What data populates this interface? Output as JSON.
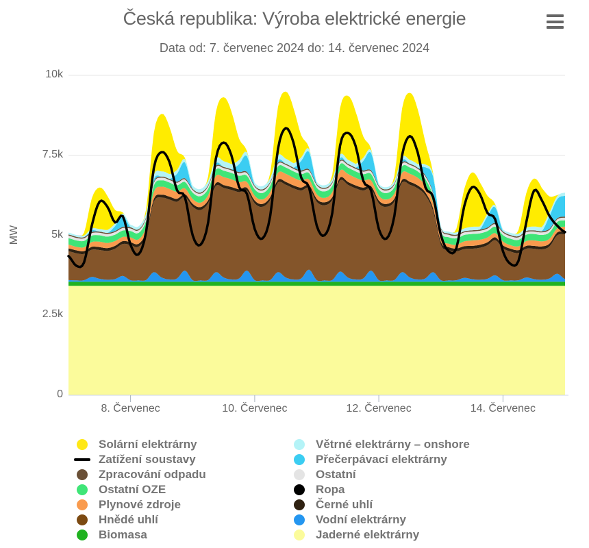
{
  "header": {
    "title": "Česká republika: Výroba elektrické energie",
    "subtitle": "Data od: 7. červenec 2024 do: 14. červenec 2024",
    "menu_icon": "menu-icon"
  },
  "chart_data": {
    "type": "area-stacked",
    "title": "Česká republika: Výroba elektrické energie",
    "ylabel": "MW",
    "ylim": [
      0,
      10000
    ],
    "grid": "horizontal",
    "legend_position": "bottom-two-columns",
    "x_start": "7. červenec 2024 00:00",
    "x_end": "15. červenec 2024 00:00",
    "step_hours": 3,
    "n_points": 65,
    "total_hours": 192,
    "yticks": [
      {
        "value": 0,
        "label": "0"
      },
      {
        "value": 2500,
        "label": "2.5k"
      },
      {
        "value": 5000,
        "label": "5k"
      },
      {
        "value": 7500,
        "label": "7.5k"
      },
      {
        "value": 10000,
        "label": "10k"
      }
    ],
    "xticks": [
      {
        "hours": 24,
        "label": "8. Červenec"
      },
      {
        "hours": 72,
        "label": "10. Červenec"
      },
      {
        "hours": 120,
        "label": "12. Červenec"
      },
      {
        "hours": 168,
        "label": "14. Červenec"
      }
    ],
    "axis_colors": {
      "grid": "#E6E6E6",
      "axis_line": "#CCD6EB",
      "tick": "#A8B2BE",
      "label": "#666666"
    },
    "stack_order": [
      "jaderne",
      "biomasa",
      "vodni",
      "hnede",
      "cerne",
      "ropa",
      "plyn",
      "oze",
      "ostatni",
      "zprac",
      "precerp",
      "vitr",
      "solar"
    ],
    "series": {
      "jaderne": {
        "name": "Jaderné elektrárny",
        "color": "#FBFB9B",
        "constant": 3420
      },
      "biomasa": {
        "name": "Biomasa",
        "color": "#20B220",
        "constant": 130
      },
      "vodni": {
        "name": "Vodní elektrárny",
        "color": "#2496F0",
        "values": [
          50,
          40,
          45,
          150,
          90,
          60,
          80,
          180,
          45,
          40,
          50,
          300,
          130,
          70,
          100,
          350,
          45,
          40,
          50,
          300,
          130,
          70,
          100,
          350,
          45,
          40,
          50,
          300,
          130,
          70,
          100,
          380,
          45,
          40,
          50,
          320,
          130,
          70,
          100,
          350,
          45,
          40,
          50,
          300,
          130,
          70,
          100,
          300,
          45,
          40,
          45,
          120,
          80,
          60,
          90,
          200,
          45,
          40,
          45,
          130,
          80,
          60,
          100,
          250,
          80
        ]
      },
      "hnede": {
        "name": "Hnědé uhlí",
        "color": "#84552A",
        "values": [
          900,
          850,
          820,
          850,
          900,
          900,
          950,
          1000,
          1100,
          1050,
          1400,
          2200,
          2500,
          2500,
          2400,
          2300,
          2300,
          2200,
          2400,
          2700,
          2800,
          2800,
          2700,
          2500,
          2400,
          2300,
          2500,
          2800,
          2900,
          2850,
          2750,
          2550,
          2450,
          2350,
          2500,
          2850,
          2900,
          2850,
          2750,
          2550,
          2400,
          2300,
          2450,
          2800,
          2900,
          2850,
          2600,
          1900,
          1100,
          950,
          900,
          900,
          950,
          1000,
          1050,
          1100,
          1000,
          900,
          850,
          900,
          950,
          950,
          1000,
          1200,
          1400
        ]
      },
      "cerne": {
        "name": "Černé uhlí",
        "color": "#2F2212",
        "constant": 90
      },
      "ropa": {
        "name": "Ropa",
        "color": "#000000",
        "constant": 0
      },
      "plyn": {
        "name": "Plynové zdroje",
        "color": "#F99B4E",
        "values": [
          120,
          110,
          120,
          150,
          170,
          160,
          150,
          130,
          150,
          140,
          160,
          220,
          250,
          240,
          220,
          180,
          150,
          140,
          160,
          220,
          250,
          240,
          220,
          180,
          150,
          140,
          160,
          220,
          250,
          240,
          220,
          180,
          150,
          140,
          160,
          220,
          250,
          240,
          220,
          180,
          150,
          140,
          160,
          220,
          250,
          240,
          220,
          180,
          120,
          110,
          120,
          150,
          170,
          160,
          150,
          130,
          120,
          110,
          120,
          150,
          170,
          160,
          150,
          130,
          150
        ]
      },
      "oze": {
        "name": "Ostatní OZE",
        "color": "#3FE577",
        "constant": 200
      },
      "ostatni": {
        "name": "Ostatní",
        "color": "#E4E4E4",
        "constant": 80
      },
      "zprac": {
        "name": "Zpracování odpadu",
        "color": "#6A5037",
        "constant": 35
      },
      "precerp": {
        "name": "Přečerpávací elektrárny",
        "color": "#3BCDF2",
        "values": [
          0,
          0,
          0,
          50,
          0,
          0,
          150,
          350,
          0,
          0,
          0,
          80,
          0,
          0,
          250,
          500,
          0,
          0,
          0,
          80,
          0,
          0,
          250,
          500,
          0,
          0,
          0,
          80,
          0,
          0,
          300,
          550,
          0,
          0,
          0,
          80,
          0,
          0,
          300,
          550,
          0,
          0,
          0,
          80,
          0,
          0,
          250,
          500,
          0,
          0,
          0,
          0,
          0,
          0,
          350,
          500,
          0,
          0,
          0,
          0,
          0,
          0,
          400,
          600,
          650
        ]
      },
      "vitr": {
        "name": "Větrné elektrárny – onshore",
        "color": "#B4F3F7",
        "values": [
          60,
          55,
          50,
          60,
          80,
          90,
          80,
          70,
          80,
          90,
          110,
          140,
          160,
          150,
          120,
          100,
          100,
          110,
          130,
          160,
          180,
          160,
          130,
          110,
          90,
          100,
          120,
          150,
          160,
          140,
          110,
          90,
          70,
          80,
          90,
          110,
          130,
          120,
          100,
          80,
          60,
          70,
          80,
          100,
          120,
          110,
          90,
          70,
          50,
          60,
          70,
          90,
          110,
          100,
          80,
          60,
          60,
          70,
          80,
          100,
          120,
          130,
          110,
          90,
          100
        ]
      },
      "solar": {
        "name": "Solární elektrárny",
        "color": "#FFEC00",
        "values": [
          0,
          0,
          90,
          940,
          1300,
          1070,
          430,
          30,
          0,
          0,
          130,
          1300,
          1800,
          1480,
          590,
          40,
          0,
          0,
          140,
          1440,
          2000,
          1640,
          660,
          40,
          0,
          0,
          150,
          1510,
          2100,
          1720,
          690,
          40,
          0,
          0,
          140,
          1440,
          2000,
          1640,
          660,
          40,
          0,
          0,
          150,
          1510,
          2100,
          1720,
          690,
          40,
          0,
          0,
          120,
          1220,
          1700,
          1390,
          560,
          30,
          0,
          0,
          110,
          1080,
          1500,
          1230,
          500,
          30,
          0
        ]
      }
    },
    "load": {
      "name": "Zatížení soustavy",
      "color": "#000000",
      "line_width": 3.5,
      "values": [
        4350,
        4050,
        4150,
        5300,
        6050,
        5900,
        5400,
        5600,
        4700,
        4400,
        5100,
        7100,
        7600,
        7300,
        6400,
        6200,
        5000,
        4700,
        5400,
        7400,
        7900,
        7500,
        6500,
        6300,
        5200,
        4900,
        5600,
        7700,
        8350,
        7900,
        6800,
        6500,
        5300,
        5000,
        5700,
        7800,
        8200,
        7800,
        6700,
        6400,
        5200,
        4900,
        5600,
        7500,
        8100,
        7600,
        6500,
        6200,
        5000,
        4500,
        4600,
        5900,
        6500,
        6300,
        5700,
        5500,
        4500,
        4100,
        4200,
        5400,
        6400,
        6100,
        5600,
        5300,
        5100
      ]
    }
  },
  "legend": {
    "left": [
      {
        "key": "solar",
        "label": "Solární elektrárny",
        "color": "#FFE816",
        "marker": "circle"
      },
      {
        "key": "zatizeni",
        "label": "Zatížení soustavy",
        "color": "#000000",
        "marker": "line"
      },
      {
        "key": "zprac",
        "label": "Zpracování odpadu",
        "color": "#6A5037",
        "marker": "circle"
      },
      {
        "key": "oze",
        "label": "Ostatní OZE",
        "color": "#3FE577",
        "marker": "circle"
      },
      {
        "key": "plyn",
        "label": "Plynové zdroje",
        "color": "#F99B4E",
        "marker": "circle"
      },
      {
        "key": "hnede",
        "label": "Hnědé uhlí",
        "color": "#7C4A12",
        "marker": "circle"
      },
      {
        "key": "biomasa",
        "label": "Biomasa",
        "color": "#20B220",
        "marker": "circle"
      }
    ],
    "right": [
      {
        "key": "vitr",
        "label": "Větrné elektrárny – onshore",
        "color": "#B4F3F7",
        "marker": "circle"
      },
      {
        "key": "precerp",
        "label": "Přečerpávací elektrárny",
        "color": "#3BCDF2",
        "marker": "circle"
      },
      {
        "key": "ostatni",
        "label": "Ostatní",
        "color": "#E4E4E4",
        "marker": "circle"
      },
      {
        "key": "ropa",
        "label": "Ropa",
        "color": "#000000",
        "marker": "circle"
      },
      {
        "key": "cerne",
        "label": "Černé uhlí",
        "color": "#2F2212",
        "marker": "circle"
      },
      {
        "key": "vodni",
        "label": "Vodní elektrárny",
        "color": "#2496F0",
        "marker": "circle"
      },
      {
        "key": "jaderne",
        "label": "Jaderné elektrárny",
        "color": "#FBFB9B",
        "marker": "circle"
      }
    ]
  }
}
